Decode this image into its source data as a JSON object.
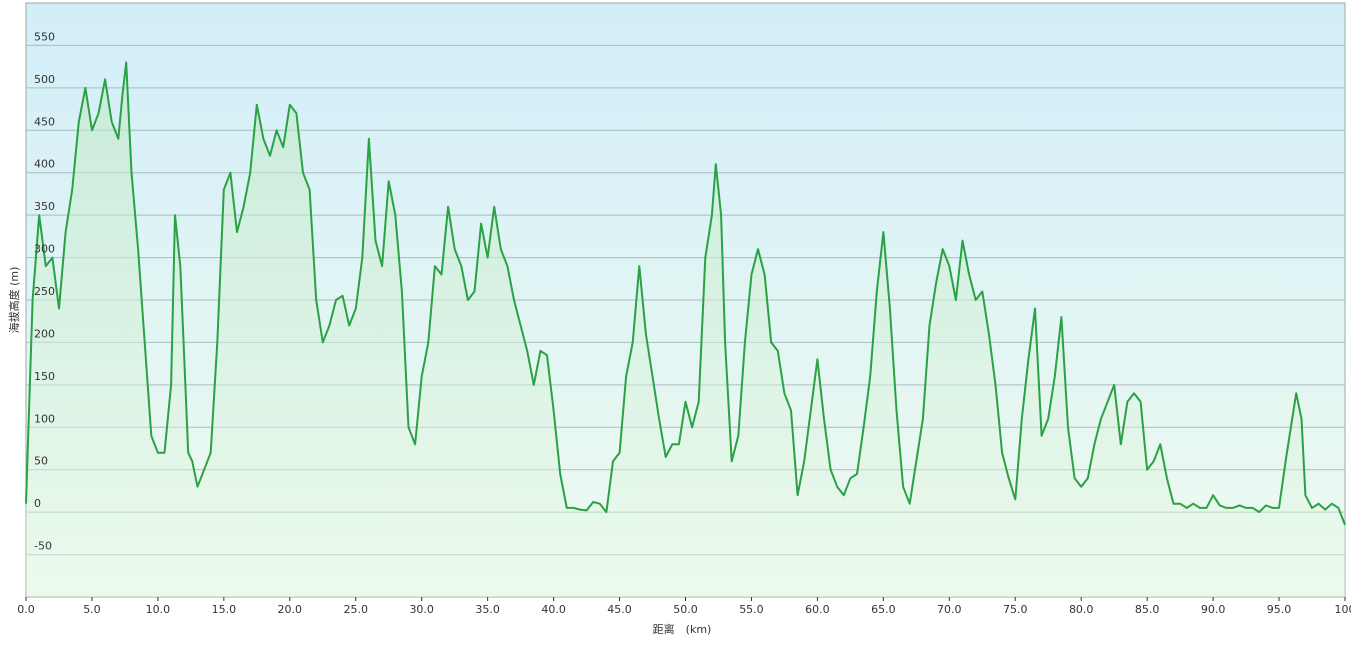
{
  "chart_data": {
    "type": "line",
    "x_label": "距离　(km)",
    "y_label": "海拔高度 (m)",
    "x": [
      0,
      0.5,
      1,
      1.5,
      2,
      2.5,
      3,
      3.5,
      4,
      4.5,
      5,
      5.5,
      6,
      6.5,
      7,
      7.3,
      7.6,
      8,
      8.5,
      9,
      9.5,
      10,
      10.5,
      11,
      11.3,
      11.7,
      12,
      12.3,
      12.6,
      13,
      13.5,
      14,
      14.5,
      15,
      15.5,
      16,
      16.5,
      17,
      17.5,
      18,
      18.5,
      19,
      19.5,
      20,
      20.5,
      21,
      21.5,
      22,
      22.5,
      23,
      23.5,
      24,
      24.5,
      25,
      25.5,
      26,
      26.5,
      27,
      27.5,
      28,
      28.5,
      29,
      29.5,
      30,
      30.5,
      31,
      31.5,
      32,
      32.5,
      33,
      33.5,
      34,
      34.5,
      35,
      35.5,
      36,
      36.5,
      37,
      37.5,
      38,
      38.5,
      39,
      39.5,
      40,
      40.5,
      41,
      41.5,
      42,
      42.5,
      43,
      43.5,
      44,
      44.5,
      45,
      45.5,
      46,
      46.5,
      47,
      47.5,
      48,
      48.5,
      49,
      49.5,
      50,
      50.5,
      51,
      51.5,
      52,
      52.3,
      52.7,
      53,
      53.5,
      54,
      54.5,
      55,
      55.5,
      56,
      56.5,
      57,
      57.5,
      58,
      58.5,
      59,
      59.5,
      60,
      60.5,
      61,
      61.5,
      62,
      62.5,
      63,
      63.5,
      64,
      64.5,
      65,
      65.5,
      66,
      66.5,
      67,
      67.5,
      68,
      68.5,
      69,
      69.5,
      70,
      70.5,
      71,
      71.5,
      72,
      72.5,
      73,
      73.5,
      74,
      74.5,
      75,
      75.5,
      76,
      76.5,
      77,
      77.5,
      78,
      78.5,
      79,
      79.5,
      80,
      80.5,
      81,
      81.5,
      82,
      82.5,
      83,
      83.5,
      84,
      84.5,
      85,
      85.5,
      86,
      86.5,
      87,
      87.5,
      88,
      88.5,
      89,
      89.5,
      90,
      90.5,
      91,
      91.5,
      92,
      92.5,
      93,
      93.5,
      94,
      94.5,
      95,
      95.5,
      96,
      96.3,
      96.7,
      97,
      97.5,
      98,
      98.5,
      99,
      99.5,
      100
    ],
    "series": [
      {
        "color": "#2aa144",
        "values": [
          10,
          250,
          350,
          290,
          300,
          240,
          330,
          380,
          460,
          500,
          450,
          470,
          510,
          460,
          440,
          490,
          530,
          400,
          310,
          200,
          90,
          70,
          70,
          150,
          350,
          290,
          180,
          70,
          60,
          30,
          50,
          70,
          200,
          380,
          400,
          330,
          360,
          400,
          480,
          440,
          420,
          450,
          430,
          480,
          470,
          400,
          380,
          250,
          200,
          220,
          250,
          255,
          220,
          240,
          300,
          440,
          320,
          290,
          390,
          350,
          260,
          100,
          80,
          160,
          200,
          290,
          280,
          360,
          310,
          290,
          250,
          260,
          340,
          300,
          360,
          310,
          290,
          250,
          220,
          190,
          150,
          190,
          185,
          120,
          45,
          5,
          5,
          3,
          2,
          12,
          10,
          0,
          60,
          70,
          160,
          200,
          290,
          210,
          160,
          110,
          65,
          80,
          80,
          130,
          100,
          130,
          300,
          350,
          410,
          350,
          200,
          60,
          90,
          200,
          280,
          310,
          280,
          200,
          190,
          140,
          120,
          20,
          60,
          120,
          180,
          110,
          50,
          30,
          20,
          40,
          45,
          100,
          160,
          260,
          330,
          240,
          120,
          30,
          10,
          60,
          110,
          220,
          270,
          310,
          290,
          250,
          320,
          280,
          250,
          260,
          210,
          150,
          70,
          40,
          15,
          110,
          180,
          240,
          90,
          110,
          160,
          230,
          100,
          40,
          30,
          40,
          80,
          110,
          130,
          150,
          80,
          130,
          140,
          130,
          50,
          60,
          80,
          40,
          10,
          10,
          5,
          10,
          5,
          5,
          20,
          8,
          5,
          5,
          8,
          5,
          5,
          0,
          8,
          5,
          5,
          60,
          110,
          140,
          110,
          20,
          5,
          10,
          3,
          10,
          5,
          -15
        ]
      }
    ],
    "xlim": [
      0,
      100
    ],
    "ylim": [
      -100,
      600
    ],
    "xticks": [
      {
        "value": 0,
        "label": "0.0"
      },
      {
        "value": 5,
        "label": "5.0"
      },
      {
        "value": 10,
        "label": "10.0"
      },
      {
        "value": 15,
        "label": "15.0"
      },
      {
        "value": 20,
        "label": "20.0"
      },
      {
        "value": 25,
        "label": "25.0"
      },
      {
        "value": 30,
        "label": "30.0"
      },
      {
        "value": 35,
        "label": "35.0"
      },
      {
        "value": 40,
        "label": "40.0"
      },
      {
        "value": 45,
        "label": "45.0"
      },
      {
        "value": 50,
        "label": "50.0"
      },
      {
        "value": 55,
        "label": "55.0"
      },
      {
        "value": 60,
        "label": "60.0"
      },
      {
        "value": 65,
        "label": "65.0"
      },
      {
        "value": 70,
        "label": "70.0"
      },
      {
        "value": 75,
        "label": "75.0"
      },
      {
        "value": 80,
        "label": "80.0"
      },
      {
        "value": 85,
        "label": "85.0"
      },
      {
        "value": 90,
        "label": "90.0"
      },
      {
        "value": 95,
        "label": "95.0"
      },
      100
    ],
    "yticks": [
      -50,
      0,
      50,
      100,
      150,
      200,
      250,
      300,
      350,
      400,
      450,
      500,
      550
    ],
    "grid": true
  }
}
